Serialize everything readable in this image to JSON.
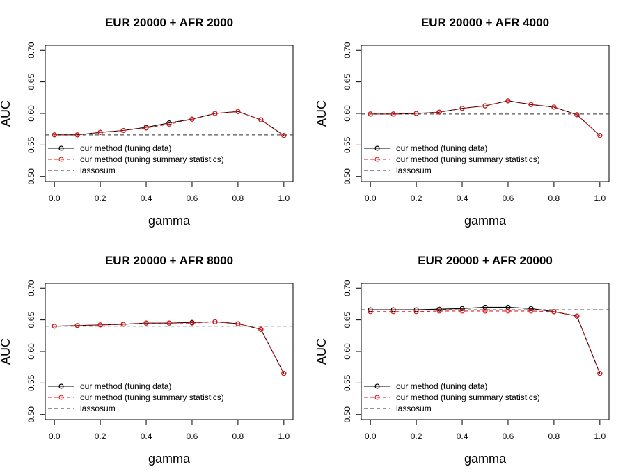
{
  "chart_data": [
    {
      "type": "line",
      "title": "EUR 20000 + AFR 2000",
      "xlabel": "gamma",
      "ylabel": "AUC",
      "xlim": [
        0,
        1
      ],
      "ylim": [
        0.5,
        0.7
      ],
      "xticks": [
        "0.0",
        "0.2",
        "0.4",
        "0.6",
        "0.8",
        "1.0"
      ],
      "yticks": [
        "0.50",
        "0.55",
        "0.60",
        "0.65",
        "0.70"
      ],
      "x": [
        0,
        0.1,
        0.2,
        0.3,
        0.4,
        0.5,
        0.6,
        0.7,
        0.8,
        0.9,
        1.0
      ],
      "series": [
        {
          "name": "our method (tuning data)",
          "color": "#000000",
          "values": [
            0.566,
            0.566,
            0.57,
            0.573,
            0.578,
            0.585,
            0.591,
            0.6,
            0.603,
            0.59,
            0.565
          ]
        },
        {
          "name": "our method (tuning summary statistics)",
          "color": "#e31a1c",
          "values": [
            0.566,
            0.566,
            0.57,
            0.573,
            0.577,
            0.583,
            0.591,
            0.6,
            0.603,
            0.59,
            0.565
          ]
        }
      ],
      "baseline": {
        "name": "lassosum",
        "value": 0.566,
        "color": "#555555"
      },
      "legend": "bottom-left",
      "grid": false
    },
    {
      "type": "line",
      "title": "EUR 20000 + AFR 4000",
      "xlabel": "gamma",
      "ylabel": "AUC",
      "xlim": [
        0,
        1
      ],
      "ylim": [
        0.5,
        0.7
      ],
      "xticks": [
        "0.0",
        "0.2",
        "0.4",
        "0.6",
        "0.8",
        "1.0"
      ],
      "yticks": [
        "0.50",
        "0.55",
        "0.60",
        "0.65",
        "0.70"
      ],
      "x": [
        0,
        0.1,
        0.2,
        0.3,
        0.4,
        0.5,
        0.6,
        0.7,
        0.8,
        0.9,
        1.0
      ],
      "series": [
        {
          "name": "our method (tuning data)",
          "color": "#000000",
          "values": [
            0.599,
            0.599,
            0.6,
            0.602,
            0.608,
            0.612,
            0.62,
            0.614,
            0.61,
            0.598,
            0.565
          ]
        },
        {
          "name": "our method (tuning summary statistics)",
          "color": "#e31a1c",
          "values": [
            0.599,
            0.599,
            0.6,
            0.602,
            0.608,
            0.612,
            0.62,
            0.614,
            0.61,
            0.598,
            0.565
          ]
        }
      ],
      "baseline": {
        "name": "lassosum",
        "value": 0.599,
        "color": "#555555"
      },
      "legend": "bottom-left",
      "grid": false
    },
    {
      "type": "line",
      "title": "EUR 20000 + AFR 8000",
      "xlabel": "gamma",
      "ylabel": "AUC",
      "xlim": [
        0,
        1
      ],
      "ylim": [
        0.5,
        0.7
      ],
      "xticks": [
        "0.0",
        "0.2",
        "0.4",
        "0.6",
        "0.8",
        "1.0"
      ],
      "yticks": [
        "0.50",
        "0.55",
        "0.60",
        "0.65",
        "0.70"
      ],
      "x": [
        0,
        0.1,
        0.2,
        0.3,
        0.4,
        0.5,
        0.6,
        0.7,
        0.8,
        0.9,
        1.0
      ],
      "series": [
        {
          "name": "our method (tuning data)",
          "color": "#000000",
          "values": [
            0.64,
            0.641,
            0.642,
            0.643,
            0.645,
            0.645,
            0.646,
            0.647,
            0.644,
            0.635,
            0.565
          ]
        },
        {
          "name": "our method (tuning summary statistics)",
          "color": "#e31a1c",
          "values": [
            0.64,
            0.641,
            0.642,
            0.643,
            0.645,
            0.645,
            0.645,
            0.647,
            0.644,
            0.635,
            0.565
          ]
        }
      ],
      "baseline": {
        "name": "lassosum",
        "value": 0.64,
        "color": "#555555"
      },
      "legend": "bottom-left",
      "grid": false
    },
    {
      "type": "line",
      "title": "EUR 20000 + AFR 20000",
      "xlabel": "gamma",
      "ylabel": "AUC",
      "xlim": [
        0,
        1
      ],
      "ylim": [
        0.5,
        0.7
      ],
      "xticks": [
        "0.0",
        "0.2",
        "0.4",
        "0.6",
        "0.8",
        "1.0"
      ],
      "yticks": [
        "0.50",
        "0.55",
        "0.60",
        "0.65",
        "0.70"
      ],
      "x": [
        0,
        0.1,
        0.2,
        0.3,
        0.4,
        0.5,
        0.6,
        0.7,
        0.8,
        0.9,
        1.0
      ],
      "series": [
        {
          "name": "our method (tuning data)",
          "color": "#000000",
          "values": [
            0.666,
            0.666,
            0.666,
            0.667,
            0.668,
            0.67,
            0.67,
            0.668,
            0.663,
            0.656,
            0.565
          ]
        },
        {
          "name": "our method (tuning summary statistics)",
          "color": "#e31a1c",
          "values": [
            0.663,
            0.663,
            0.663,
            0.664,
            0.664,
            0.664,
            0.664,
            0.664,
            0.663,
            0.656,
            0.565
          ]
        }
      ],
      "baseline": {
        "name": "lassosum",
        "value": 0.666,
        "color": "#555555"
      },
      "legend": "bottom-left",
      "grid": false
    }
  ]
}
